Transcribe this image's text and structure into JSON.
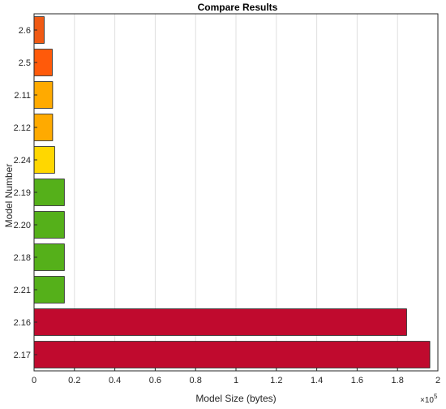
{
  "chart_data": {
    "type": "bar",
    "orientation": "horizontal",
    "title": "Compare Results",
    "xlabel": "Model Size (bytes)",
    "ylabel": "Model Number",
    "x_exponent_label": "×10",
    "x_exponent_power": "5",
    "x_scale_factor": 100000,
    "xlim": [
      0,
      200000
    ],
    "x_ticks": [
      0,
      20000,
      40000,
      60000,
      80000,
      100000,
      120000,
      140000,
      160000,
      180000,
      200000
    ],
    "x_tick_labels": [
      "0",
      "0.2",
      "0.4",
      "0.6",
      "0.8",
      "1",
      "1.2",
      "1.4",
      "1.6",
      "1.8",
      "2"
    ],
    "grid": "vertical",
    "categories": [
      "2.6",
      "2.5",
      "2.11",
      "2.12",
      "2.24",
      "2.19",
      "2.20",
      "2.18",
      "2.21",
      "2.16",
      "2.17"
    ],
    "values": [
      5000,
      9000,
      9200,
      9200,
      10200,
      15000,
      15000,
      15000,
      15000,
      184500,
      196000
    ],
    "colors": [
      "#f05a14",
      "#ff5a0a",
      "#ffaa00",
      "#ffaa00",
      "#ffd700",
      "#55b01a",
      "#55b01a",
      "#55b01a",
      "#55b01a",
      "#c00a2e",
      "#c00a2e"
    ]
  }
}
